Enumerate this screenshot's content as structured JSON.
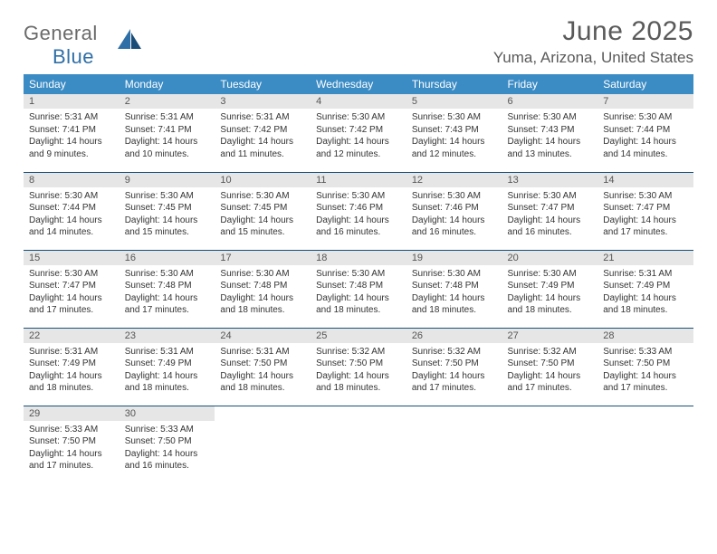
{
  "logo": {
    "text1": "General",
    "text2": "Blue"
  },
  "title": "June 2025",
  "location": "Yuma, Arizona, United States",
  "colors": {
    "header_bg": "#3b8bc4",
    "header_text": "#ffffff",
    "daynum_bg": "#e6e6e6",
    "row_border": "#18507a",
    "logo_gray": "#6b6b6b",
    "logo_blue": "#2f6fa7"
  },
  "weekdays": [
    "Sunday",
    "Monday",
    "Tuesday",
    "Wednesday",
    "Thursday",
    "Friday",
    "Saturday"
  ],
  "weeks": [
    [
      {
        "n": "1",
        "sr": "Sunrise: 5:31 AM",
        "ss": "Sunset: 7:41 PM",
        "d1": "Daylight: 14 hours",
        "d2": "and 9 minutes."
      },
      {
        "n": "2",
        "sr": "Sunrise: 5:31 AM",
        "ss": "Sunset: 7:41 PM",
        "d1": "Daylight: 14 hours",
        "d2": "and 10 minutes."
      },
      {
        "n": "3",
        "sr": "Sunrise: 5:31 AM",
        "ss": "Sunset: 7:42 PM",
        "d1": "Daylight: 14 hours",
        "d2": "and 11 minutes."
      },
      {
        "n": "4",
        "sr": "Sunrise: 5:30 AM",
        "ss": "Sunset: 7:42 PM",
        "d1": "Daylight: 14 hours",
        "d2": "and 12 minutes."
      },
      {
        "n": "5",
        "sr": "Sunrise: 5:30 AM",
        "ss": "Sunset: 7:43 PM",
        "d1": "Daylight: 14 hours",
        "d2": "and 12 minutes."
      },
      {
        "n": "6",
        "sr": "Sunrise: 5:30 AM",
        "ss": "Sunset: 7:43 PM",
        "d1": "Daylight: 14 hours",
        "d2": "and 13 minutes."
      },
      {
        "n": "7",
        "sr": "Sunrise: 5:30 AM",
        "ss": "Sunset: 7:44 PM",
        "d1": "Daylight: 14 hours",
        "d2": "and 14 minutes."
      }
    ],
    [
      {
        "n": "8",
        "sr": "Sunrise: 5:30 AM",
        "ss": "Sunset: 7:44 PM",
        "d1": "Daylight: 14 hours",
        "d2": "and 14 minutes."
      },
      {
        "n": "9",
        "sr": "Sunrise: 5:30 AM",
        "ss": "Sunset: 7:45 PM",
        "d1": "Daylight: 14 hours",
        "d2": "and 15 minutes."
      },
      {
        "n": "10",
        "sr": "Sunrise: 5:30 AM",
        "ss": "Sunset: 7:45 PM",
        "d1": "Daylight: 14 hours",
        "d2": "and 15 minutes."
      },
      {
        "n": "11",
        "sr": "Sunrise: 5:30 AM",
        "ss": "Sunset: 7:46 PM",
        "d1": "Daylight: 14 hours",
        "d2": "and 16 minutes."
      },
      {
        "n": "12",
        "sr": "Sunrise: 5:30 AM",
        "ss": "Sunset: 7:46 PM",
        "d1": "Daylight: 14 hours",
        "d2": "and 16 minutes."
      },
      {
        "n": "13",
        "sr": "Sunrise: 5:30 AM",
        "ss": "Sunset: 7:47 PM",
        "d1": "Daylight: 14 hours",
        "d2": "and 16 minutes."
      },
      {
        "n": "14",
        "sr": "Sunrise: 5:30 AM",
        "ss": "Sunset: 7:47 PM",
        "d1": "Daylight: 14 hours",
        "d2": "and 17 minutes."
      }
    ],
    [
      {
        "n": "15",
        "sr": "Sunrise: 5:30 AM",
        "ss": "Sunset: 7:47 PM",
        "d1": "Daylight: 14 hours",
        "d2": "and 17 minutes."
      },
      {
        "n": "16",
        "sr": "Sunrise: 5:30 AM",
        "ss": "Sunset: 7:48 PM",
        "d1": "Daylight: 14 hours",
        "d2": "and 17 minutes."
      },
      {
        "n": "17",
        "sr": "Sunrise: 5:30 AM",
        "ss": "Sunset: 7:48 PM",
        "d1": "Daylight: 14 hours",
        "d2": "and 18 minutes."
      },
      {
        "n": "18",
        "sr": "Sunrise: 5:30 AM",
        "ss": "Sunset: 7:48 PM",
        "d1": "Daylight: 14 hours",
        "d2": "and 18 minutes."
      },
      {
        "n": "19",
        "sr": "Sunrise: 5:30 AM",
        "ss": "Sunset: 7:48 PM",
        "d1": "Daylight: 14 hours",
        "d2": "and 18 minutes."
      },
      {
        "n": "20",
        "sr": "Sunrise: 5:30 AM",
        "ss": "Sunset: 7:49 PM",
        "d1": "Daylight: 14 hours",
        "d2": "and 18 minutes."
      },
      {
        "n": "21",
        "sr": "Sunrise: 5:31 AM",
        "ss": "Sunset: 7:49 PM",
        "d1": "Daylight: 14 hours",
        "d2": "and 18 minutes."
      }
    ],
    [
      {
        "n": "22",
        "sr": "Sunrise: 5:31 AM",
        "ss": "Sunset: 7:49 PM",
        "d1": "Daylight: 14 hours",
        "d2": "and 18 minutes."
      },
      {
        "n": "23",
        "sr": "Sunrise: 5:31 AM",
        "ss": "Sunset: 7:49 PM",
        "d1": "Daylight: 14 hours",
        "d2": "and 18 minutes."
      },
      {
        "n": "24",
        "sr": "Sunrise: 5:31 AM",
        "ss": "Sunset: 7:50 PM",
        "d1": "Daylight: 14 hours",
        "d2": "and 18 minutes."
      },
      {
        "n": "25",
        "sr": "Sunrise: 5:32 AM",
        "ss": "Sunset: 7:50 PM",
        "d1": "Daylight: 14 hours",
        "d2": "and 18 minutes."
      },
      {
        "n": "26",
        "sr": "Sunrise: 5:32 AM",
        "ss": "Sunset: 7:50 PM",
        "d1": "Daylight: 14 hours",
        "d2": "and 17 minutes."
      },
      {
        "n": "27",
        "sr": "Sunrise: 5:32 AM",
        "ss": "Sunset: 7:50 PM",
        "d1": "Daylight: 14 hours",
        "d2": "and 17 minutes."
      },
      {
        "n": "28",
        "sr": "Sunrise: 5:33 AM",
        "ss": "Sunset: 7:50 PM",
        "d1": "Daylight: 14 hours",
        "d2": "and 17 minutes."
      }
    ],
    [
      {
        "n": "29",
        "sr": "Sunrise: 5:33 AM",
        "ss": "Sunset: 7:50 PM",
        "d1": "Daylight: 14 hours",
        "d2": "and 17 minutes."
      },
      {
        "n": "30",
        "sr": "Sunrise: 5:33 AM",
        "ss": "Sunset: 7:50 PM",
        "d1": "Daylight: 14 hours",
        "d2": "and 16 minutes."
      },
      null,
      null,
      null,
      null,
      null
    ]
  ]
}
